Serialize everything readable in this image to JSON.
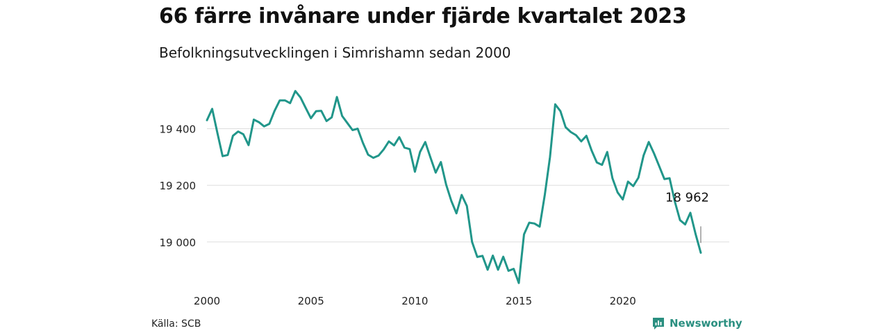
{
  "header": {
    "title": "66 färre invånare under fjärde kvartalet 2023",
    "subtitle": "Befolkningsutvecklingen i Simrishamn sedan 2000"
  },
  "footer": {
    "source": "Källa: SCB",
    "brand": "Newsworthy",
    "brand_icon": "newsworthy-logo-icon"
  },
  "colors": {
    "line": "#21968a",
    "grid": "#dddddd",
    "brand": "#2a8f80"
  },
  "chart_data": {
    "type": "line",
    "title": "66 färre invånare under fjärde kvartalet 2023",
    "subtitle": "Befolkningsutvecklingen i Simrishamn sedan 2000",
    "xlabel": "",
    "ylabel": "",
    "xlim": [
      2000,
      2025.12
    ],
    "ylim": [
      18850,
      19580
    ],
    "x_ticks": [
      2000,
      2005,
      2010,
      2015,
      2020
    ],
    "y_ticks": [
      19000,
      19200,
      19400
    ],
    "y_tick_labels": [
      "19 000",
      "19 200",
      "19 400"
    ],
    "grid": "horizontal",
    "legend": "none",
    "x_start": 2000.0,
    "x_step": 0.25,
    "values": [
      19430,
      19470,
      19385,
      19303,
      19307,
      19375,
      19390,
      19380,
      19342,
      19432,
      19423,
      19408,
      19417,
      19463,
      19500,
      19500,
      19490,
      19533,
      19510,
      19473,
      19437,
      19462,
      19463,
      19427,
      19440,
      19512,
      19445,
      19420,
      19395,
      19400,
      19350,
      19308,
      19297,
      19305,
      19327,
      19355,
      19341,
      19370,
      19333,
      19328,
      19248,
      19318,
      19353,
      19298,
      19245,
      19282,
      19203,
      19145,
      19101,
      19166,
      19127,
      19000,
      18947,
      18951,
      18902,
      18952,
      18902,
      18948,
      18898,
      18905,
      18855,
      19027,
      19068,
      19065,
      19054,
      19168,
      19300,
      19486,
      19462,
      19405,
      19388,
      19377,
      19355,
      19375,
      19323,
      19281,
      19272,
      19318,
      19225,
      19175,
      19150,
      19213,
      19197,
      19227,
      19306,
      19353,
      19313,
      19268,
      19222,
      19225,
      19143,
      19077,
      19062,
      19103,
      19028,
      18962
    ],
    "annotations": [
      {
        "label": "18 962",
        "x": 2023.75,
        "y": 18962
      }
    ]
  }
}
